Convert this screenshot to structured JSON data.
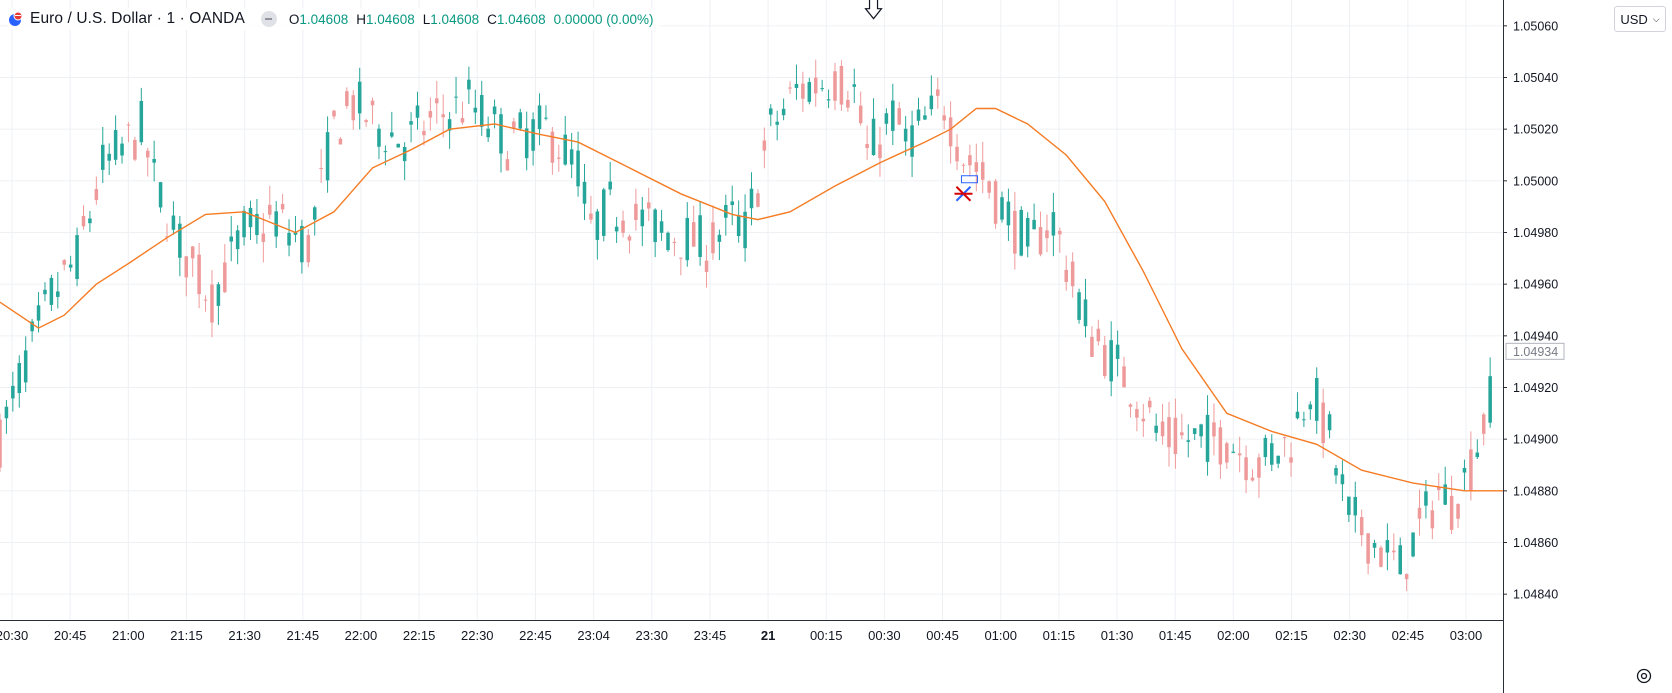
{
  "header": {
    "symbol_title": "Euro / U.S. Dollar · 1 · OANDA",
    "ohlc": [
      {
        "label": "O",
        "value": "1.04608"
      },
      {
        "label": "H",
        "value": "1.04608"
      },
      {
        "label": "L",
        "value": "1.04608"
      },
      {
        "label": "C",
        "value": "1.04608"
      }
    ],
    "change": "0.00000 (0.00%)"
  },
  "price_scale": {
    "currency": "USD",
    "current_price_label": "1.04934"
  },
  "colors": {
    "up": "#26a69a",
    "down": "#ef9a9a",
    "moving_average": "#f57c24",
    "grid": "#eef0f4",
    "axis_text": "#131722",
    "ohlc_text": "#089981"
  },
  "chart_data": {
    "type": "candlestick",
    "instrument": "EURUSD",
    "interval": "1 minute",
    "ylim": [
      1.0483,
      1.0507
    ],
    "y_ticks": [
      {
        "value": 1.0484,
        "label": "1.04840"
      },
      {
        "value": 1.0486,
        "label": "1.04860"
      },
      {
        "value": 1.0488,
        "label": "1.04880"
      },
      {
        "value": 1.049,
        "label": "1.04900"
      },
      {
        "value": 1.0492,
        "label": "1.04920"
      },
      {
        "value": 1.0494,
        "label": "1.04940"
      },
      {
        "value": 1.0496,
        "label": "1.04960"
      },
      {
        "value": 1.0498,
        "label": "1.04980"
      },
      {
        "value": 1.05,
        "label": "1.05000"
      },
      {
        "value": 1.0502,
        "label": "1.05020"
      },
      {
        "value": 1.0504,
        "label": "1.05040"
      },
      {
        "value": 1.0506,
        "label": "1.05060"
      }
    ],
    "x_ticks": [
      "20:30",
      "20:45",
      "21:00",
      "21:15",
      "21:30",
      "21:45",
      "22:00",
      "22:15",
      "22:30",
      "22:45",
      "23:04",
      "23:30",
      "23:45",
      "21",
      "00:15",
      "00:30",
      "00:45",
      "01:00",
      "01:15",
      "01:30",
      "01:45",
      "02:00",
      "02:15",
      "02:30",
      "02:45",
      "03:00"
    ],
    "price_path": [
      {
        "t": 0,
        "p": 1.049
      },
      {
        "t": 4,
        "p": 1.0493
      },
      {
        "t": 8,
        "p": 1.04955
      },
      {
        "t": 12,
        "p": 1.0497
      },
      {
        "t": 16,
        "p": 1.05005
      },
      {
        "t": 18,
        "p": 1.0501
      },
      {
        "t": 22,
        "p": 1.0502
      },
      {
        "t": 24,
        "p": 1.05
      },
      {
        "t": 28,
        "p": 1.04975
      },
      {
        "t": 33,
        "p": 1.04955
      },
      {
        "t": 38,
        "p": 1.0498
      },
      {
        "t": 43,
        "p": 1.04985
      },
      {
        "t": 48,
        "p": 1.04975
      },
      {
        "t": 52,
        "p": 1.0502
      },
      {
        "t": 55,
        "p": 1.0503
      },
      {
        "t": 59,
        "p": 1.0502
      },
      {
        "t": 63,
        "p": 1.05015
      },
      {
        "t": 68,
        "p": 1.05025
      },
      {
        "t": 73,
        "p": 1.0503
      },
      {
        "t": 79,
        "p": 1.05015
      },
      {
        "t": 85,
        "p": 1.0502
      },
      {
        "t": 90,
        "p": 1.05005
      },
      {
        "t": 92,
        "p": 1.0498
      },
      {
        "t": 95,
        "p": 1.0499
      },
      {
        "t": 104,
        "p": 1.0498
      },
      {
        "t": 110,
        "p": 1.04975
      },
      {
        "t": 114,
        "p": 1.04985
      },
      {
        "t": 116,
        "p": 1.0498
      },
      {
        "t": 120,
        "p": 1.0502
      },
      {
        "t": 124,
        "p": 1.05035
      },
      {
        "t": 130,
        "p": 1.0504
      },
      {
        "t": 133,
        "p": 1.05035
      },
      {
        "t": 135,
        "p": 1.0501
      },
      {
        "t": 139,
        "p": 1.05025
      },
      {
        "t": 141,
        "p": 1.05015
      },
      {
        "t": 145,
        "p": 1.05025
      },
      {
        "t": 147,
        "p": 1.0503
      },
      {
        "t": 150,
        "p": 1.0501
      },
      {
        "t": 152,
        "p": 1.05005
      },
      {
        "t": 156,
        "p": 1.0499
      },
      {
        "t": 160,
        "p": 1.04975
      },
      {
        "t": 164,
        "p": 1.04985
      },
      {
        "t": 167,
        "p": 1.0496
      },
      {
        "t": 170,
        "p": 1.0494
      },
      {
        "t": 175,
        "p": 1.04925
      },
      {
        "t": 181,
        "p": 1.049
      },
      {
        "t": 186,
        "p": 1.049
      },
      {
        "t": 191,
        "p": 1.049
      },
      {
        "t": 196,
        "p": 1.0489
      },
      {
        "t": 201,
        "p": 1.049
      },
      {
        "t": 204,
        "p": 1.0492
      },
      {
        "t": 207,
        "p": 1.049
      },
      {
        "t": 210,
        "p": 1.0487
      },
      {
        "t": 214,
        "p": 1.0486
      },
      {
        "t": 218,
        "p": 1.0485
      },
      {
        "t": 221,
        "p": 1.04865
      },
      {
        "t": 224,
        "p": 1.0488
      },
      {
        "t": 226,
        "p": 1.04875
      },
      {
        "t": 229,
        "p": 1.0489
      },
      {
        "t": 232,
        "p": 1.04915
      }
    ],
    "moving_average_path": [
      {
        "t": 0,
        "p": 1.04953
      },
      {
        "t": 6,
        "p": 1.04943
      },
      {
        "t": 10,
        "p": 1.04948
      },
      {
        "t": 15,
        "p": 1.0496
      },
      {
        "t": 20,
        "p": 1.04968
      },
      {
        "t": 26,
        "p": 1.04978
      },
      {
        "t": 32,
        "p": 1.04987
      },
      {
        "t": 38,
        "p": 1.04988
      },
      {
        "t": 46,
        "p": 1.0498
      },
      {
        "t": 52,
        "p": 1.04988
      },
      {
        "t": 58,
        "p": 1.05005
      },
      {
        "t": 64,
        "p": 1.05012
      },
      {
        "t": 70,
        "p": 1.0502
      },
      {
        "t": 77,
        "p": 1.05022
      },
      {
        "t": 84,
        "p": 1.05018
      },
      {
        "t": 90,
        "p": 1.05015
      },
      {
        "t": 98,
        "p": 1.05005
      },
      {
        "t": 106,
        "p": 1.04995
      },
      {
        "t": 114,
        "p": 1.04987
      },
      {
        "t": 118,
        "p": 1.04985
      },
      {
        "t": 123,
        "p": 1.04988
      },
      {
        "t": 130,
        "p": 1.04998
      },
      {
        "t": 137,
        "p": 1.05007
      },
      {
        "t": 144,
        "p": 1.05015
      },
      {
        "t": 148,
        "p": 1.0502
      },
      {
        "t": 152,
        "p": 1.05028
      },
      {
        "t": 155,
        "p": 1.05028
      },
      {
        "t": 160,
        "p": 1.05022
      },
      {
        "t": 166,
        "p": 1.0501
      },
      {
        "t": 172,
        "p": 1.04992
      },
      {
        "t": 178,
        "p": 1.04965
      },
      {
        "t": 184,
        "p": 1.04935
      },
      {
        "t": 191,
        "p": 1.0491
      },
      {
        "t": 198,
        "p": 1.04903
      },
      {
        "t": 205,
        "p": 1.04898
      },
      {
        "t": 212,
        "p": 1.04888
      },
      {
        "t": 220,
        "p": 1.04883
      },
      {
        "t": 228,
        "p": 1.0488
      },
      {
        "t": 234,
        "p": 1.0488
      }
    ],
    "annotations": [
      {
        "type": "arrow-down",
        "t": 136,
        "p": 1.05062
      },
      {
        "type": "marker",
        "t": 150,
        "p": 1.04995
      }
    ],
    "grid": true
  }
}
